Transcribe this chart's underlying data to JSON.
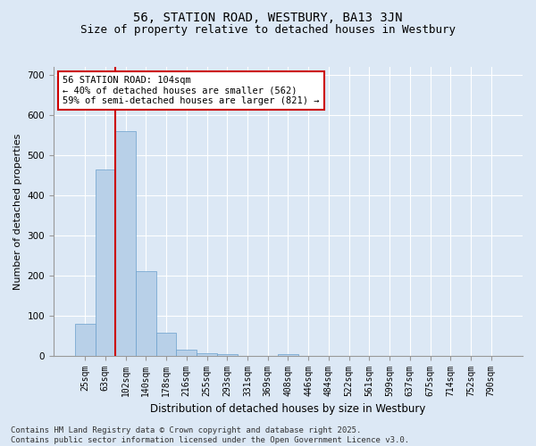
{
  "title1": "56, STATION ROAD, WESTBURY, BA13 3JN",
  "title2": "Size of property relative to detached houses in Westbury",
  "xlabel": "Distribution of detached houses by size in Westbury",
  "ylabel": "Number of detached properties",
  "bar_color": "#b8d0e8",
  "bar_edge_color": "#6aa0cc",
  "vline_color": "#cc0000",
  "vline_x_index": 1.5,
  "annotation_text": "56 STATION ROAD: 104sqm\n← 40% of detached houses are smaller (562)\n59% of semi-detached houses are larger (821) →",
  "annotation_box_facecolor": "#ffffff",
  "annotation_box_edgecolor": "#cc0000",
  "categories": [
    "25sqm",
    "63sqm",
    "102sqm",
    "140sqm",
    "178sqm",
    "216sqm",
    "255sqm",
    "293sqm",
    "331sqm",
    "369sqm",
    "408sqm",
    "446sqm",
    "484sqm",
    "522sqm",
    "561sqm",
    "599sqm",
    "637sqm",
    "675sqm",
    "714sqm",
    "752sqm",
    "790sqm"
  ],
  "values": [
    80,
    465,
    560,
    210,
    57,
    15,
    7,
    4,
    0,
    0,
    3,
    0,
    0,
    0,
    0,
    0,
    0,
    0,
    0,
    0,
    0
  ],
  "ylim": [
    0,
    720
  ],
  "yticks": [
    0,
    100,
    200,
    300,
    400,
    500,
    600,
    700
  ],
  "background_color": "#dce8f5",
  "grid_color": "#ffffff",
  "footer_text": "Contains HM Land Registry data © Crown copyright and database right 2025.\nContains public sector information licensed under the Open Government Licence v3.0.",
  "title1_fontsize": 10,
  "title2_fontsize": 9,
  "axis_label_fontsize": 8,
  "tick_fontsize": 7,
  "annotation_fontsize": 7.5,
  "footer_fontsize": 6.5
}
